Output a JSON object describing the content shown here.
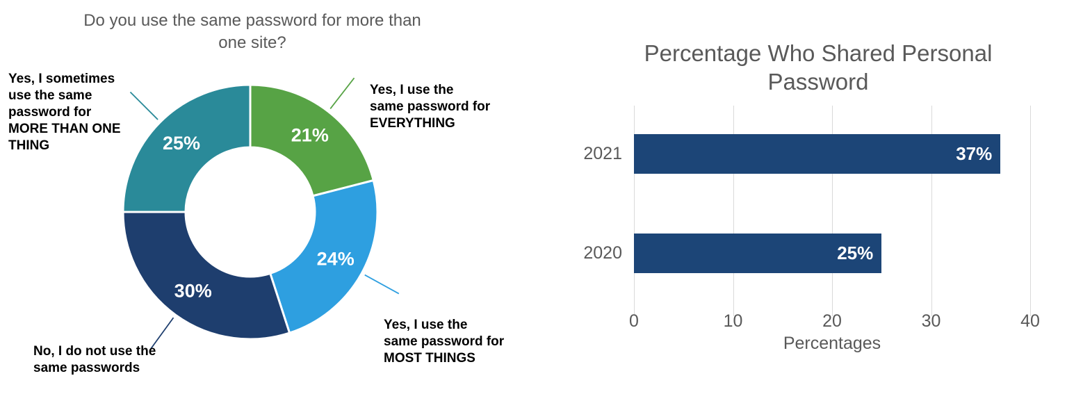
{
  "chart_data": [
    {
      "type": "pie",
      "subtype": "donut",
      "title": "Do you use the same password for more than one site?",
      "title_lines": [
        "Do you use the same password for more than",
        "one site?"
      ],
      "donut_hole_ratio": 0.51,
      "start_angle_clockwise_from_top": 0,
      "slices": [
        {
          "value": 21,
          "pct_label": "21%",
          "color": "#57A345",
          "callout_lines": [
            "Yes, I use the",
            "same password for"
          ],
          "callout_bold_lines": [
            "EVERYTHING"
          ]
        },
        {
          "value": 24,
          "pct_label": "24%",
          "color": "#2E9FE0",
          "callout_lines": [
            "Yes, I use the",
            "same password for"
          ],
          "callout_bold_lines": [
            "MOST THINGS"
          ]
        },
        {
          "value": 30,
          "pct_label": "30%",
          "color": "#1E3E6E",
          "callout_lines": [
            "No, I do not use the",
            "same passwords"
          ],
          "callout_bold_lines": []
        },
        {
          "value": 25,
          "pct_label": "25%",
          "color": "#2A8A99",
          "callout_lines": [
            "Yes, I sometimes",
            "use the same",
            "password for"
          ],
          "callout_bold_lines": [
            "MORE THAN ONE",
            "THING"
          ]
        }
      ],
      "percent_label_color": "#ffffff"
    },
    {
      "type": "bar",
      "orientation": "horizontal",
      "title": "Percentage Who Shared Personal Password",
      "title_lines": [
        "Percentage Who Shared Personal",
        "Password"
      ],
      "categories": [
        "2021",
        "2020"
      ],
      "values": [
        37,
        25
      ],
      "value_labels": [
        "37%",
        "25%"
      ],
      "xlabel": "Percentages",
      "xticks": [
        0,
        10,
        20,
        30,
        40
      ],
      "xlim": [
        0,
        40
      ],
      "bar_color": "#1C4577",
      "gridline_color": "#D9D9D9",
      "axis_text_color": "#595959",
      "legend": "none",
      "grid": "vertical"
    }
  ]
}
